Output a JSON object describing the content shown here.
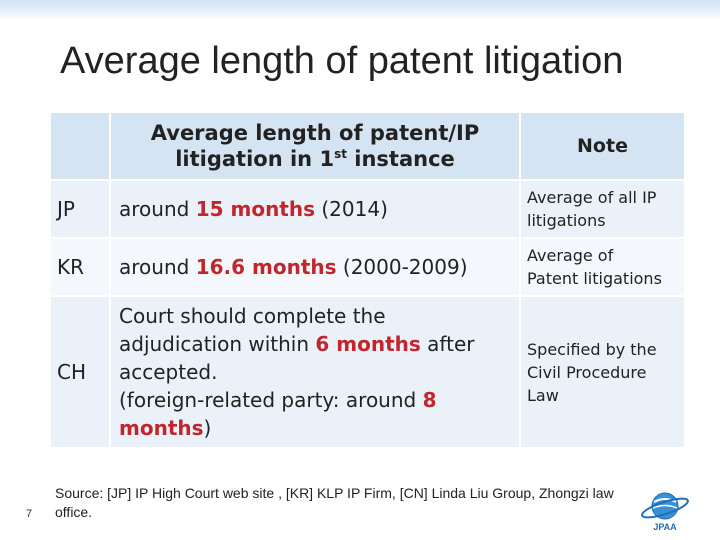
{
  "slide": {
    "title": "Average length of patent litigation",
    "number": "7",
    "source": "Source: [JP] IP High Court web site , [KR] KLP IP Firm, [CN] Linda Liu Group, Zhongzi law office.",
    "logo_text": "JPAA"
  },
  "table": {
    "header": {
      "col1_line1": "Average length of patent/IP",
      "col1_line2_a": "litigation in 1",
      "col1_line2_sup": "st",
      "col1_line2_b": " instance",
      "note": "Note"
    },
    "rows": [
      {
        "country": "JP",
        "pre": "around ",
        "highlight": "15 months",
        "post": " (2014)",
        "note_line1": "Average of all IP",
        "note_line2": "litigations"
      },
      {
        "country": "KR",
        "pre": "around ",
        "highlight": "16.6 months",
        "post": " (2000-2009)",
        "note_line1": "Average of",
        "note_line2": "Patent litigations"
      },
      {
        "country": "CH",
        "line1": "Court should complete the",
        "line2_a": "adjudication within ",
        "line2_highlight": "6 months",
        "line2_b": " after",
        "line3": "accepted.",
        "line4_a": "(foreign-related party: around ",
        "line4_highlight": "8",
        "line5_highlight": "months",
        "line5_b": ")",
        "note_line1": "Specified by the",
        "note_line2": "Civil Procedure",
        "note_line3": "Law"
      }
    ]
  },
  "colors": {
    "header_bg": "#d5e4f3",
    "row_alt_bg": "#eaf1f9",
    "highlight": "#c0262c",
    "logo_blue": "#1f6fb8"
  }
}
